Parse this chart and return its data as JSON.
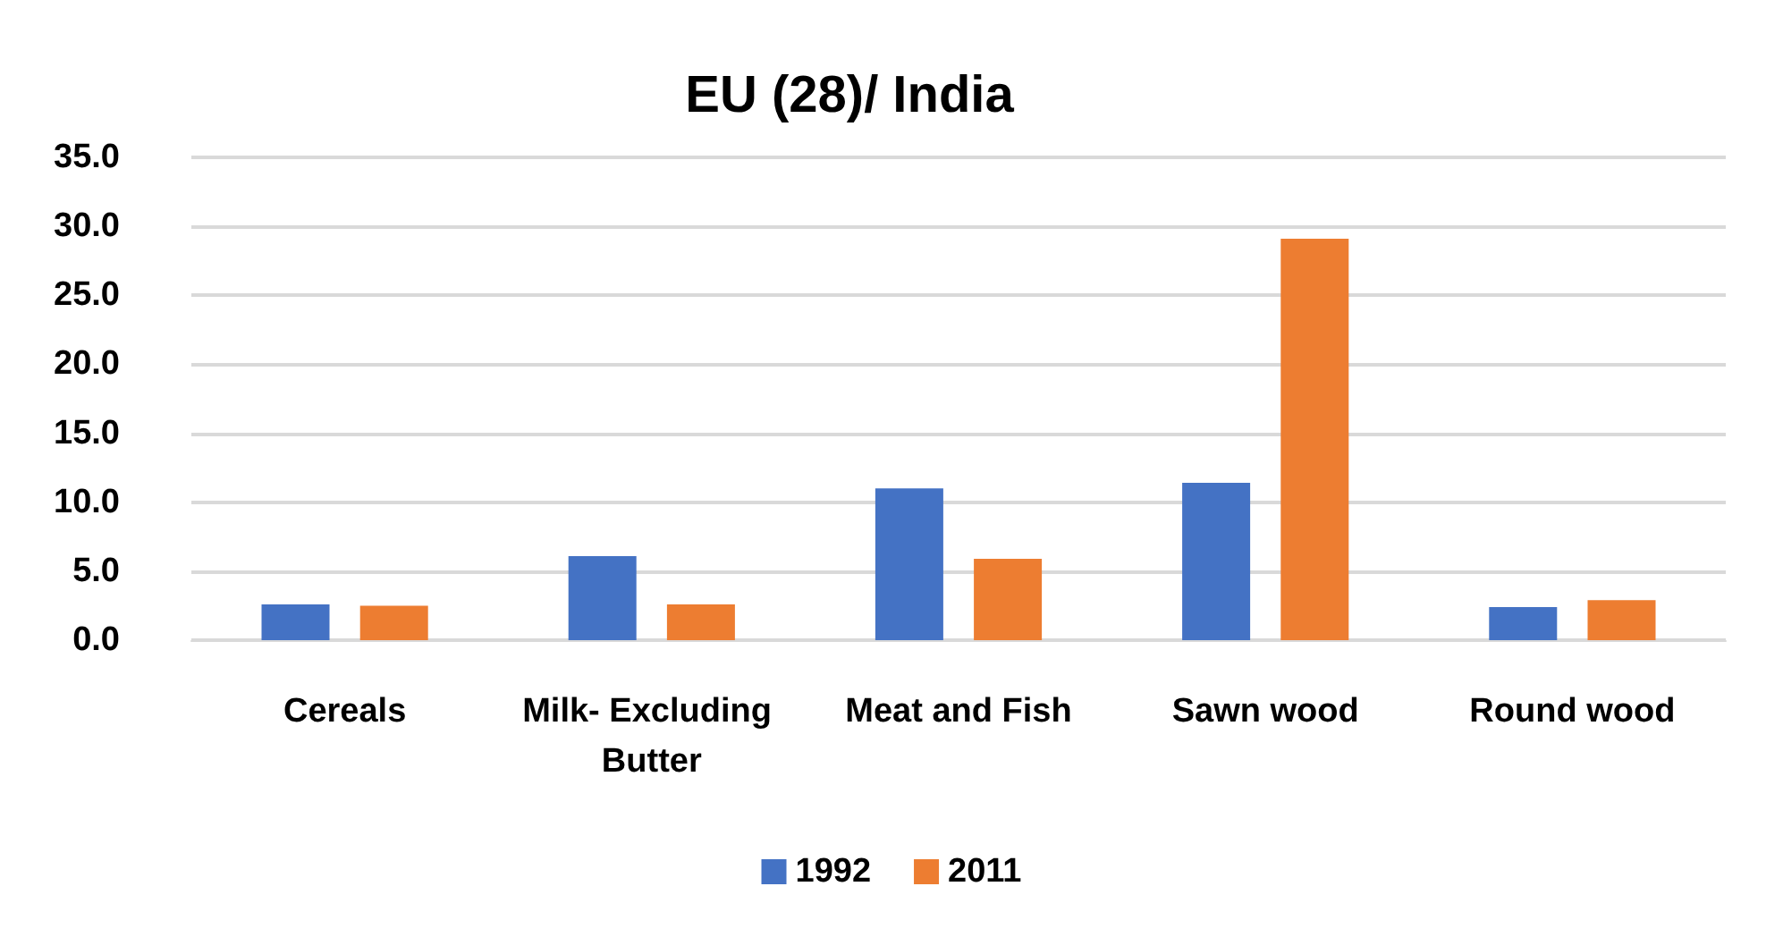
{
  "chart_data": {
    "type": "bar",
    "title": "EU (28)/ India",
    "categories": [
      "Cereals",
      "Milk- Excluding Butter",
      "Meat and Fish",
      "Sawn wood",
      "Round wood"
    ],
    "series": [
      {
        "name": "1992",
        "color": "#4472c4",
        "values": [
          2.6,
          6.1,
          11.0,
          11.4,
          2.4
        ]
      },
      {
        "name": "2011",
        "color": "#ed7d31",
        "values": [
          2.5,
          2.6,
          5.9,
          29.1,
          2.9
        ]
      }
    ],
    "ylim": [
      0,
      35
    ],
    "yticks": [
      {
        "value": 0,
        "label": "0.0"
      },
      {
        "value": 5,
        "label": "5.0"
      },
      {
        "value": 10,
        "label": "10.0"
      },
      {
        "value": 15,
        "label": "15.0"
      },
      {
        "value": 20,
        "label": "20.0"
      },
      {
        "value": 25,
        "label": "25.0"
      },
      {
        "value": 30,
        "label": "30.0"
      },
      {
        "value": 35,
        "label": "35.0"
      }
    ],
    "grid": true,
    "legend": "bottom"
  }
}
